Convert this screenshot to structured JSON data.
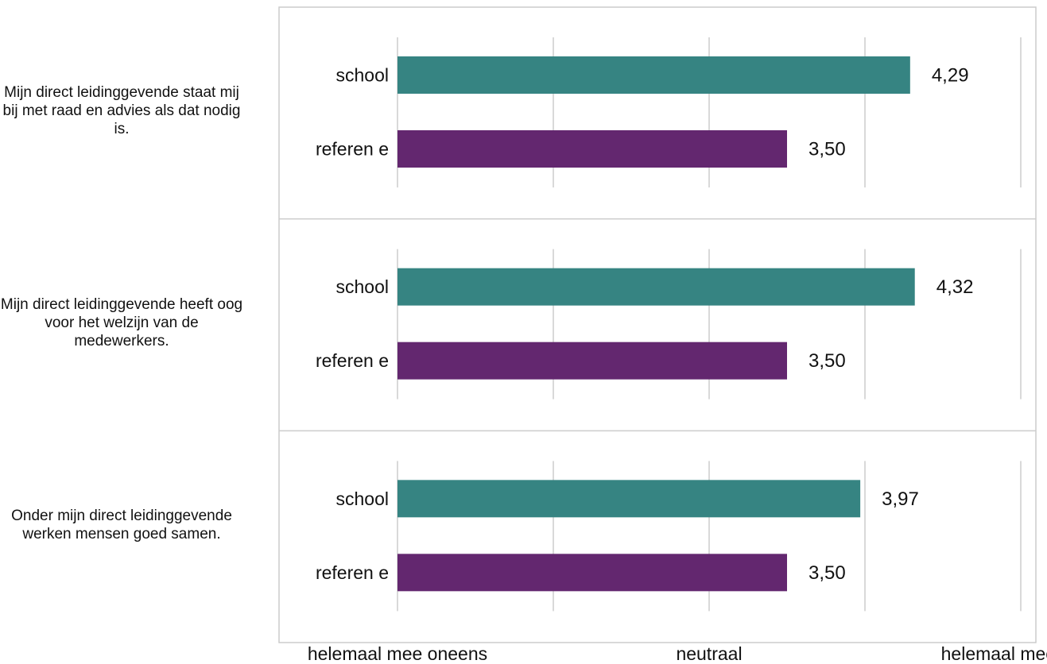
{
  "colors": {
    "school": "#368482",
    "referentie": "#63276f",
    "grid": "#d9d9d9",
    "border": "#cccccc"
  },
  "x_axis": {
    "ticks": [
      {
        "value": 1,
        "label": "helemaal mee oneens"
      },
      {
        "value": 3,
        "label": "neutraal"
      },
      {
        "value": 5,
        "label": "helemaal mee eens"
      }
    ]
  },
  "chart_data": {
    "type": "bar",
    "orientation": "horizontal",
    "xlim": [
      1,
      5
    ],
    "gridlines_at": [
      1,
      2,
      3,
      4,
      5
    ],
    "panels": [
      {
        "statement": "Mijn direct leidinggevende staat mij bij met raad en advies als dat nodig is.",
        "bars": [
          {
            "category": "school",
            "value": 4.29,
            "label": "4,29",
            "color_key": "school"
          },
          {
            "category": "referen  e",
            "value": 3.5,
            "label": "3,50",
            "color_key": "referentie"
          }
        ]
      },
      {
        "statement": "Mijn direct leidinggevende heeft oog voor het welzijn van de medewerkers.",
        "bars": [
          {
            "category": "school",
            "value": 4.32,
            "label": "4,32",
            "color_key": "school"
          },
          {
            "category": "referen  e",
            "value": 3.5,
            "label": "3,50",
            "color_key": "referentie"
          }
        ]
      },
      {
        "statement": "Onder mijn direct leidinggevende werken mensen goed samen.",
        "bars": [
          {
            "category": "school",
            "value": 3.97,
            "label": "3,97",
            "color_key": "school"
          },
          {
            "category": "referen  e",
            "value": 3.5,
            "label": "3,50",
            "color_key": "referentie"
          }
        ]
      }
    ]
  }
}
